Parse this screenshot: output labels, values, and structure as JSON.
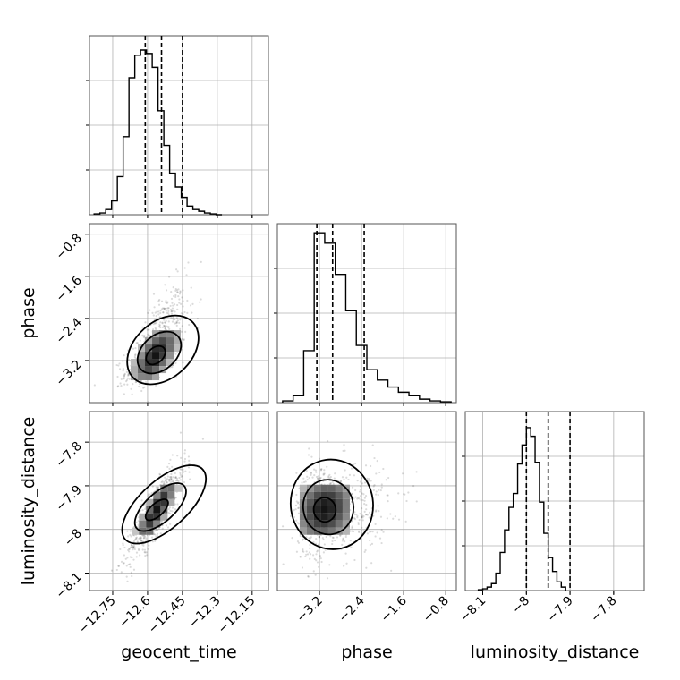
{
  "chart_data": {
    "type": "corner",
    "parameters": [
      {
        "key": "geocent_time",
        "label": "geocent_time",
        "ticks": [
          -12.75,
          -12.6,
          -12.45,
          -12.3,
          -12.15
        ],
        "range": [
          -12.85,
          -12.08
        ]
      },
      {
        "key": "phase",
        "label": "phase",
        "ticks": [
          -3.2,
          -2.4,
          -1.6,
          -0.8
        ],
        "range": [
          -4.0,
          -0.6
        ]
      },
      {
        "key": "luminosity_distance",
        "label": "luminosity_distance",
        "ticks": [
          -8.1,
          -8.0,
          -7.9,
          -7.8
        ],
        "range": [
          -8.14,
          -7.73
        ]
      }
    ],
    "quantiles": {
      "geocent_time": [
        -12.61,
        -12.54,
        -12.45
      ],
      "phase": [
        -3.25,
        -2.95,
        -2.35
      ],
      "luminosity_distance": [
        -8.0,
        -7.95,
        -7.9
      ]
    },
    "histograms": {
      "geocent_time": {
        "start": -12.83,
        "width": 0.025,
        "counts": [
          0.5,
          1,
          3,
          8,
          22,
          45,
          79,
          92,
          95,
          93,
          85,
          60,
          40,
          24,
          16,
          10,
          5,
          3,
          2,
          1,
          0.5,
          0
        ]
      },
      "phase": {
        "start": -3.9,
        "width": 0.2,
        "counts": [
          1,
          4,
          30,
          98,
          92,
          74,
          53,
          33,
          19,
          13,
          9,
          6,
          4,
          2,
          1,
          0.5
        ]
      },
      "luminosity_distance": {
        "start": -8.11,
        "width": 0.01,
        "counts": [
          0.5,
          1,
          2,
          4,
          10,
          22,
          35,
          48,
          56,
          73,
          84,
          94,
          89,
          74,
          51,
          33,
          19,
          11,
          5,
          2
        ]
      }
    },
    "pairs": [
      {
        "x": "geocent_time",
        "y": "phase",
        "center": [
          -12.565,
          -3.1
        ],
        "sd": [
          0.065,
          0.38
        ],
        "corr": 0.62
      },
      {
        "x": "geocent_time",
        "y": "luminosity_distance",
        "center": [
          -12.56,
          -7.955
        ],
        "sd": [
          0.062,
          0.055
        ],
        "corr": 0.85
      },
      {
        "x": "phase",
        "y": "luminosity_distance",
        "center": [
          -3.1,
          -7.955
        ],
        "sd": [
          0.38,
          0.055
        ],
        "corr": 0.15
      }
    ]
  }
}
